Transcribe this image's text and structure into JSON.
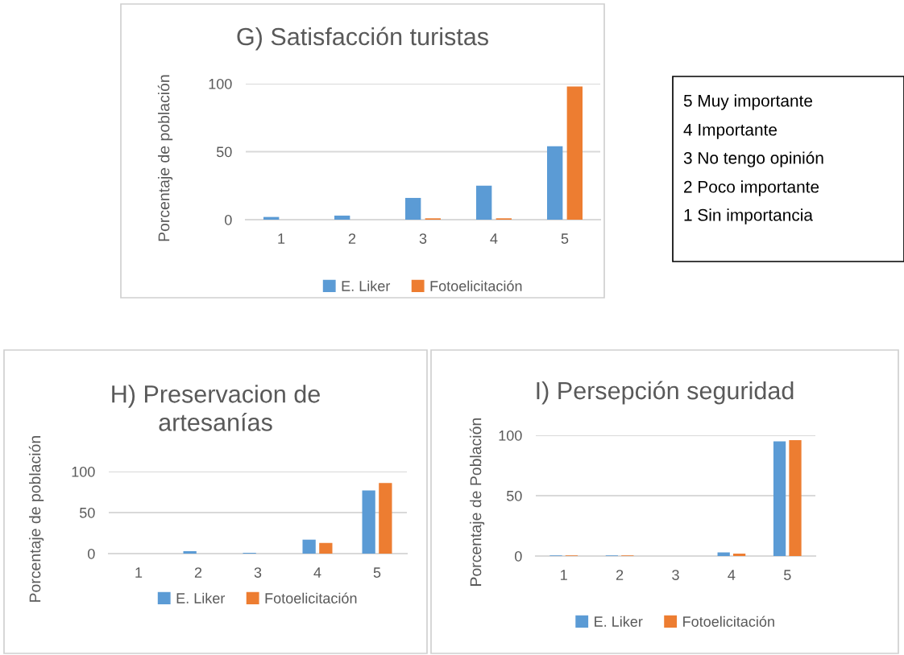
{
  "chart_data": [
    {
      "type": "bar",
      "title": "G) Satisfacción turistas",
      "ylabel": "Porcentaje de población",
      "categories": [
        "1",
        "2",
        "3",
        "4",
        "5"
      ],
      "series": [
        {
          "name": "E. Liker",
          "color": "#5b9bd5",
          "values": [
            2,
            3,
            16,
            25,
            54
          ]
        },
        {
          "name": "Fotoelicitación",
          "color": "#ed7d31",
          "values": [
            0,
            0,
            1,
            1,
            98
          ]
        }
      ],
      "ylim": [
        0,
        100
      ],
      "yticks": [
        0,
        50,
        100
      ],
      "grid": "y",
      "legend": "bottom"
    },
    {
      "type": "other",
      "annotations": [
        "5 Muy importante",
        "4 Importante",
        "3 No tengo opinión",
        "2 Poco importante",
        "1 Sin importancia"
      ]
    },
    {
      "type": "bar",
      "title": "H) Preservacion de\nartesanías",
      "ylabel": "Porcentaje de población",
      "categories": [
        "1",
        "2",
        "3",
        "4",
        "5"
      ],
      "series": [
        {
          "name": "E. Liker",
          "color": "#5b9bd5",
          "values": [
            0,
            3,
            1,
            17,
            77
          ]
        },
        {
          "name": "Fotoelicitación",
          "color": "#ed7d31",
          "values": [
            0,
            0,
            0,
            13,
            86
          ]
        }
      ],
      "ylim": [
        0,
        100
      ],
      "yticks": [
        0,
        50,
        100
      ],
      "grid": "y",
      "legend": "bottom"
    },
    {
      "type": "bar",
      "title": "I) Persepción seguridad",
      "ylabel": "Porcentaje de Población",
      "categories": [
        "1",
        "2",
        "3",
        "4",
        "5"
      ],
      "series": [
        {
          "name": "E. Liker",
          "color": "#5b9bd5",
          "values": [
            0.5,
            0.5,
            0,
            3,
            95
          ]
        },
        {
          "name": "Fotoelicitación",
          "color": "#ed7d31",
          "values": [
            0.5,
            0.5,
            0,
            2,
            96
          ]
        }
      ],
      "ylim": [
        0,
        100
      ],
      "yticks": [
        0,
        50,
        100
      ],
      "grid": "y",
      "legend": "bottom"
    }
  ]
}
